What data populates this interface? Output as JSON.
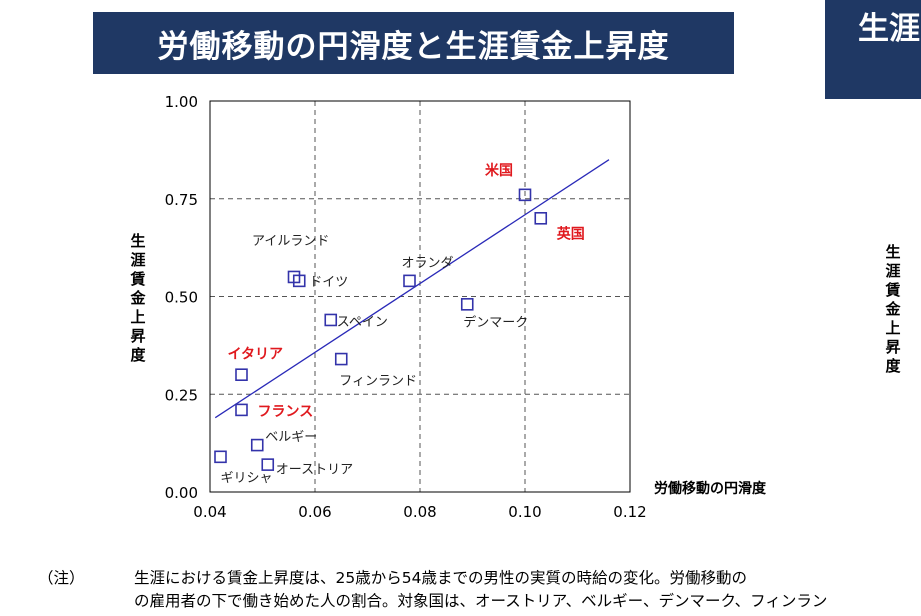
{
  "title": "労働移動の円滑度と生涯賃金上昇度",
  "title2": "生涯",
  "side_ylabel": "生涯賃金上昇度",
  "note": {
    "label": "（注）",
    "line1": "生涯における賃金上昇度は、25歳から54歳までの男性の実質の時給の変化。労働移動の",
    "line2": "の雇用者の下で働き始めた人の割合。対象国は、オーストリア、ベルギー、デンマーク、フィンラン"
  },
  "chart_data": {
    "type": "scatter",
    "xlabel": "労働移動の円滑度",
    "ylabel": "生涯賃金上昇度",
    "xlim": [
      0.04,
      0.12
    ],
    "ylim": [
      0.0,
      1.0
    ],
    "xticks": [
      "0.04",
      "0.06",
      "0.08",
      "0.10",
      "0.12"
    ],
    "yticks": [
      "0.00",
      "0.25",
      "0.50",
      "0.75",
      "1.00"
    ],
    "grid": true,
    "marker_color": "#3333aa",
    "trend_color": "#2a2ab8",
    "highlight_color": "#e0191e",
    "points": [
      {
        "label": "米国",
        "x": 0.1,
        "y": 0.76,
        "highlight": true
      },
      {
        "label": "英国",
        "x": 0.103,
        "y": 0.7,
        "highlight": true
      },
      {
        "label": "アイルランド",
        "x": 0.056,
        "y": 0.55,
        "highlight": false
      },
      {
        "label": "ドイツ",
        "x": 0.057,
        "y": 0.54,
        "highlight": false
      },
      {
        "label": "オランダ",
        "x": 0.078,
        "y": 0.54,
        "highlight": false
      },
      {
        "label": "デンマーク",
        "x": 0.089,
        "y": 0.48,
        "highlight": false
      },
      {
        "label": "スペイン",
        "x": 0.063,
        "y": 0.44,
        "highlight": false
      },
      {
        "label": "フィンランド",
        "x": 0.065,
        "y": 0.34,
        "highlight": false
      },
      {
        "label": "イタリア",
        "x": 0.046,
        "y": 0.3,
        "highlight": true
      },
      {
        "label": "フランス",
        "x": 0.046,
        "y": 0.21,
        "highlight": true
      },
      {
        "label": "ベルギー",
        "x": 0.049,
        "y": 0.12,
        "highlight": false
      },
      {
        "label": "ギリシャ",
        "x": 0.042,
        "y": 0.09,
        "highlight": false
      },
      {
        "label": "オーストリア",
        "x": 0.051,
        "y": 0.07,
        "highlight": false
      }
    ],
    "trendline": {
      "x": [
        0.041,
        0.116
      ],
      "y": [
        0.19,
        0.85
      ]
    }
  }
}
